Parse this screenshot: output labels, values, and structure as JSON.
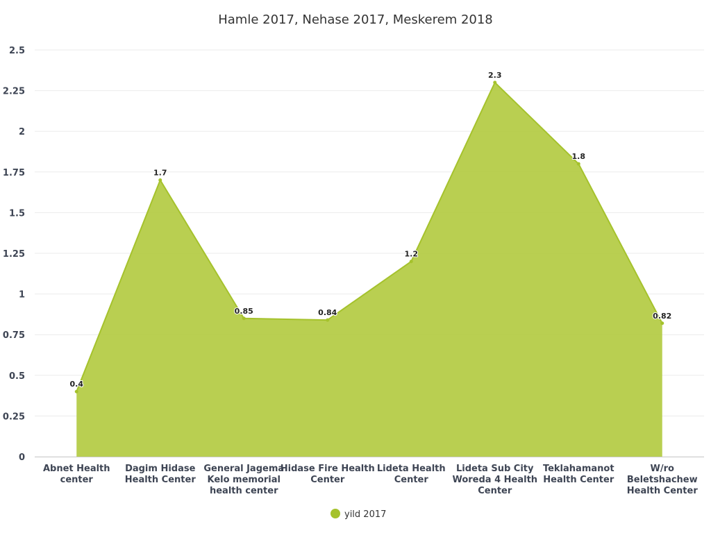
{
  "chart_data": {
    "type": "area",
    "title": "Hamle 2017, Nehase 2017, Meskerem 2018",
    "categories": [
      "Abnet Health center",
      "Dagim Hidase Health Center",
      "General Jagema Kelo memorial health center",
      "Hidase Fire Health Center",
      "Lideta Health Center",
      "Lideta Sub City Woreda 4 Health Center",
      "Teklahamanot Health Center",
      "W/ro Beletshachew Health Center"
    ],
    "category_lines": [
      [
        "Abnet Health",
        "center"
      ],
      [
        "Dagim Hidase",
        "Health Center"
      ],
      [
        "General Jagema",
        "Kelo memorial",
        "health center"
      ],
      [
        "Hidase Fire Health",
        "Center"
      ],
      [
        "Lideta Health",
        "Center"
      ],
      [
        "Lideta Sub City",
        "Woreda 4 Health",
        "Center"
      ],
      [
        "Teklahamanot",
        "Health Center"
      ],
      [
        "W/ro",
        "Beletshachew",
        "Health Center"
      ]
    ],
    "series": [
      {
        "name": "yild 2017",
        "values": [
          0.4,
          1.7,
          0.85,
          0.84,
          1.2,
          2.3,
          1.8,
          0.82
        ],
        "color": "#a5c22c"
      }
    ],
    "data_labels": [
      "0.4",
      "1.7",
      "0.85",
      "0.84",
      "1.2",
      "2.3",
      "1.8",
      "0.82"
    ],
    "yticks": [
      "0",
      "0.25",
      "0.5",
      "0.75",
      "1",
      "1.25",
      "1.5",
      "1.75",
      "2",
      "2.25",
      "2.5"
    ],
    "ylim": [
      0,
      2.5
    ],
    "grid": true,
    "legend_position": "bottom-center",
    "colors": {
      "area_fill": "#b5cc48",
      "line": "#a5c22c",
      "grid": "#ebebeb",
      "axis": "#cccccc"
    }
  }
}
